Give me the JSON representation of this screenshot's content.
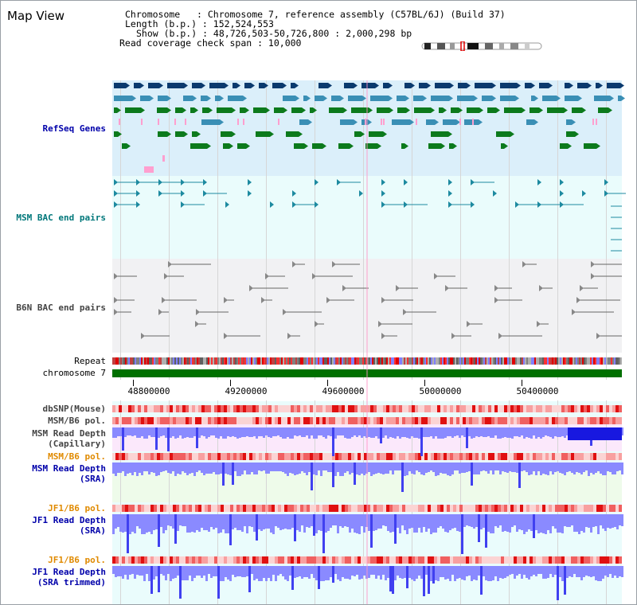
{
  "page": {
    "title": "Map View"
  },
  "info": {
    "chromosome_line": "Chromosome   : Chromosome 7, reference assembly (C57BL/6J) (Build 37)",
    "length_line": "Length (b.p.) : 152,524,553",
    "show_line": "Show (b.p.) : 48,726,503-50,726,800 : 2,000,298 bp",
    "coverage_line": "Read coverage check span : 10,000"
  },
  "tracks": {
    "refseq": "RefSeq Genes",
    "msm_bac": "MSM BAC end pairs",
    "b6n_bac": "B6N BAC end pairs",
    "repeat": "Repeat",
    "chromosome": "chromosome 7",
    "dbsnp": "dbSNP(Mouse)",
    "msm_b6_pol_1": "MSM/B6 pol.",
    "msm_depth_cap_1": "MSM Read Depth",
    "msm_depth_cap_2": "(Capillary)",
    "msm_b6_pol_2": "MSM/B6 pol.",
    "msm_depth_sra_1": "MSM Read Depth",
    "msm_depth_sra_2": "(SRA)",
    "jf1_b6_pol_1": "JF1/B6 pol.",
    "jf1_depth_sra_1": "JF1 Read Depth",
    "jf1_depth_sra_2": "(SRA)",
    "jf1_b6_pol_2": "JF1/B6 pol.",
    "jf1_depth_trim_1": "JF1 Read Depth",
    "jf1_depth_trim_2": "(SRA trimmed)"
  },
  "axis": {
    "ticks": [
      "48800000",
      "49200000",
      "49600000",
      "50000000",
      "50400000"
    ]
  },
  "colors": {
    "refseq_bg": "#dbeffa",
    "msm_bac_bg": "#eafcfc",
    "b6n_bac_bg": "#f1f1f3",
    "chromosome_bar": "#007000",
    "gene_dark": "#0b3a6e",
    "gene_mid": "#3a8fb5",
    "gene_green": "#0c7a1c",
    "gene_pink": "#ff9fcf",
    "depth_blue": "#6b6bff",
    "pol_red": "#e83030",
    "orange_label": "#e08a00"
  }
}
